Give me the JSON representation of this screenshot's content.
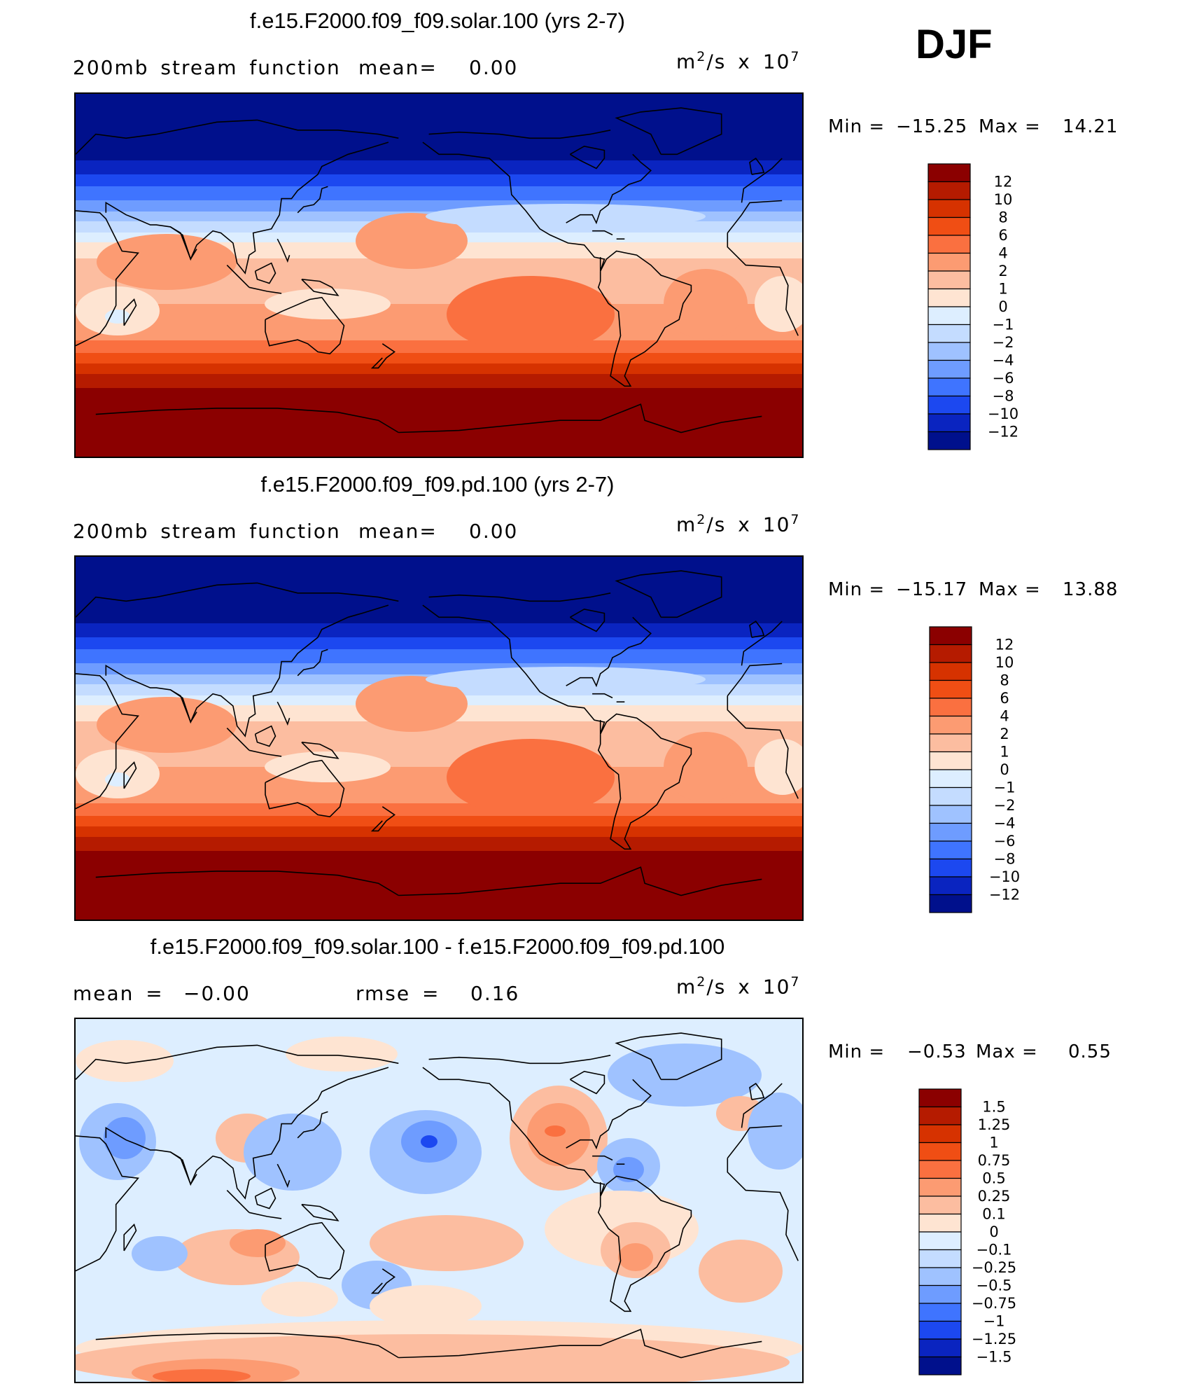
{
  "season": "DJF",
  "panels": [
    {
      "title": "f.e15.F2000.f09_f09.solar.100 (yrs 2-7)",
      "left_label": "200mb stream function",
      "stat_label": "mean=",
      "stat_value": "0.00",
      "unit_base": "m",
      "unit_mid": "/s x 10",
      "unit_exp1": "2",
      "unit_exp2": "7",
      "min_label": "Min =",
      "min_value": "−15.25",
      "max_label": "Max =",
      "max_value": "14.21"
    },
    {
      "title": "f.e15.F2000.f09_f09.pd.100 (yrs 2-7)",
      "left_label": "200mb stream function",
      "stat_label": "mean=",
      "stat_value": "0.00",
      "unit_base": "m",
      "unit_mid": "/s x 10",
      "unit_exp1": "2",
      "unit_exp2": "7",
      "min_label": "Min =",
      "min_value": "−15.17",
      "max_label": "Max =",
      "max_value": "13.88"
    },
    {
      "title": "f.e15.F2000.f09_f09.solar.100 - f.e15.F2000.f09_f09.pd.100",
      "left_label": "mean =",
      "left_value": "−0.00",
      "stat_label": "rmse =",
      "stat_value": "0.16",
      "unit_base": "m",
      "unit_mid": "/s x 10",
      "unit_exp1": "2",
      "unit_exp2": "7",
      "min_label": "Min =",
      "min_value": "−0.53",
      "max_label": "Max =",
      "max_value": "0.55"
    }
  ],
  "colorbars": [
    {
      "labels": [
        "12",
        "10",
        "8",
        "6",
        "4",
        "2",
        "1",
        "0",
        "−1",
        "−2",
        "−4",
        "−6",
        "−8",
        "−10",
        "−12"
      ],
      "colors": [
        "#8b0000",
        "#b51b00",
        "#d63200",
        "#f04e14",
        "#fa7040",
        "#fc9b72",
        "#fcbda0",
        "#fee4d2",
        "#ddeeff",
        "#c4dcff",
        "#9fc2ff",
        "#6e9cff",
        "#3f74ff",
        "#1c48f0",
        "#0a24c0",
        "#00108c"
      ]
    },
    {
      "labels": [
        "12",
        "10",
        "8",
        "6",
        "4",
        "2",
        "1",
        "0",
        "−1",
        "−2",
        "−4",
        "−6",
        "−8",
        "−10",
        "−12"
      ],
      "colors": [
        "#8b0000",
        "#b51b00",
        "#d63200",
        "#f04e14",
        "#fa7040",
        "#fc9b72",
        "#fcbda0",
        "#fee4d2",
        "#ddeeff",
        "#c4dcff",
        "#9fc2ff",
        "#6e9cff",
        "#3f74ff",
        "#1c48f0",
        "#0a24c0",
        "#00108c"
      ]
    },
    {
      "labels": [
        "1.5",
        "1.25",
        "1",
        "0.75",
        "0.5",
        "0.25",
        "0.1",
        "0",
        "−0.1",
        "−0.25",
        "−0.5",
        "−0.75",
        "−1",
        "−1.25",
        "−1.5"
      ],
      "colors": [
        "#8b0000",
        "#b51b00",
        "#d63200",
        "#f04e14",
        "#fa7040",
        "#fc9b72",
        "#fcbda0",
        "#fee4d2",
        "#ddeeff",
        "#c4dcff",
        "#9fc2ff",
        "#6e9cff",
        "#3f74ff",
        "#1c48f0",
        "#0a24c0",
        "#00108c"
      ]
    }
  ],
  "chart_data": [
    {
      "type": "heatmap",
      "title": "f.e15.F2000.f09_f09.solar.100 (yrs 2-7)",
      "variable": "200mb stream function",
      "units": "m^2/s x 10^7",
      "mean": 0.0,
      "min": -15.25,
      "max": 14.21,
      "contour_levels": [
        -12,
        -10,
        -8,
        -6,
        -4,
        -2,
        -1,
        0,
        1,
        2,
        4,
        6,
        8,
        10,
        12
      ]
    },
    {
      "type": "heatmap",
      "title": "f.e15.F2000.f09_f09.pd.100 (yrs 2-7)",
      "variable": "200mb stream function",
      "units": "m^2/s x 10^7",
      "mean": 0.0,
      "min": -15.17,
      "max": 13.88,
      "contour_levels": [
        -12,
        -10,
        -8,
        -6,
        -4,
        -2,
        -1,
        0,
        1,
        2,
        4,
        6,
        8,
        10,
        12
      ]
    },
    {
      "type": "heatmap",
      "title": "f.e15.F2000.f09_f09.solar.100 - f.e15.F2000.f09_f09.pd.100",
      "units": "m^2/s x 10^7",
      "mean": -0.0,
      "rmse": 0.16,
      "min": -0.53,
      "max": 0.55,
      "contour_levels": [
        -1.5,
        -1.25,
        -1,
        -0.75,
        -0.5,
        -0.25,
        -0.1,
        0,
        0.1,
        0.25,
        0.5,
        0.75,
        1,
        1.25,
        1.5
      ]
    }
  ]
}
